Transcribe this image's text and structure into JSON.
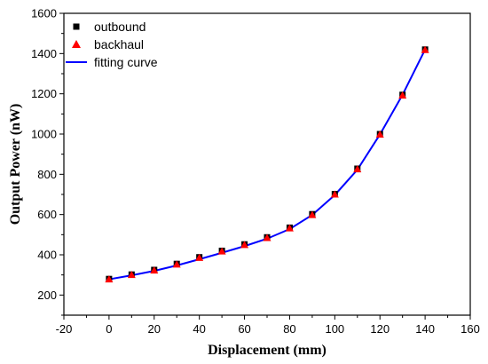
{
  "chart_data": {
    "type": "scatter",
    "xlabel": "Displacement (mm)",
    "ylabel": "Output Power (nW)",
    "xlim": [
      -20,
      160
    ],
    "ylim": [
      100,
      1600
    ],
    "xticks": [
      -20,
      0,
      20,
      40,
      60,
      80,
      100,
      120,
      140,
      160
    ],
    "yticks": [
      200,
      400,
      600,
      800,
      1000,
      1200,
      1400,
      1600
    ],
    "grid": false,
    "legend_position": "top-left",
    "series": [
      {
        "name": "outbound",
        "marker": "square",
        "color": "#000000",
        "x": [
          0,
          10,
          20,
          30,
          40,
          50,
          60,
          70,
          80,
          90,
          100,
          110,
          120,
          130,
          140
        ],
        "y": [
          280,
          302,
          325,
          355,
          388,
          420,
          452,
          487,
          535,
          602,
          702,
          828,
          1000,
          1195,
          1420
        ]
      },
      {
        "name": "backhaul",
        "marker": "triangle",
        "color": "#ff0000",
        "x": [
          0,
          10,
          20,
          30,
          40,
          50,
          60,
          70,
          80,
          90,
          100,
          110,
          120,
          130,
          140
        ],
        "y": [
          278,
          300,
          322,
          352,
          385,
          417,
          449,
          484,
          532,
          598,
          700,
          825,
          998,
          1192,
          1418
        ]
      },
      {
        "name": "fitting curve",
        "marker": "line",
        "color": "#0000ff",
        "x": [
          0,
          10,
          20,
          30,
          40,
          50,
          60,
          70,
          80,
          90,
          100,
          110,
          120,
          130,
          140
        ],
        "y": [
          278,
          298,
          320,
          347,
          378,
          410,
          443,
          480,
          528,
          598,
          697,
          823,
          998,
          1195,
          1420
        ]
      }
    ]
  }
}
